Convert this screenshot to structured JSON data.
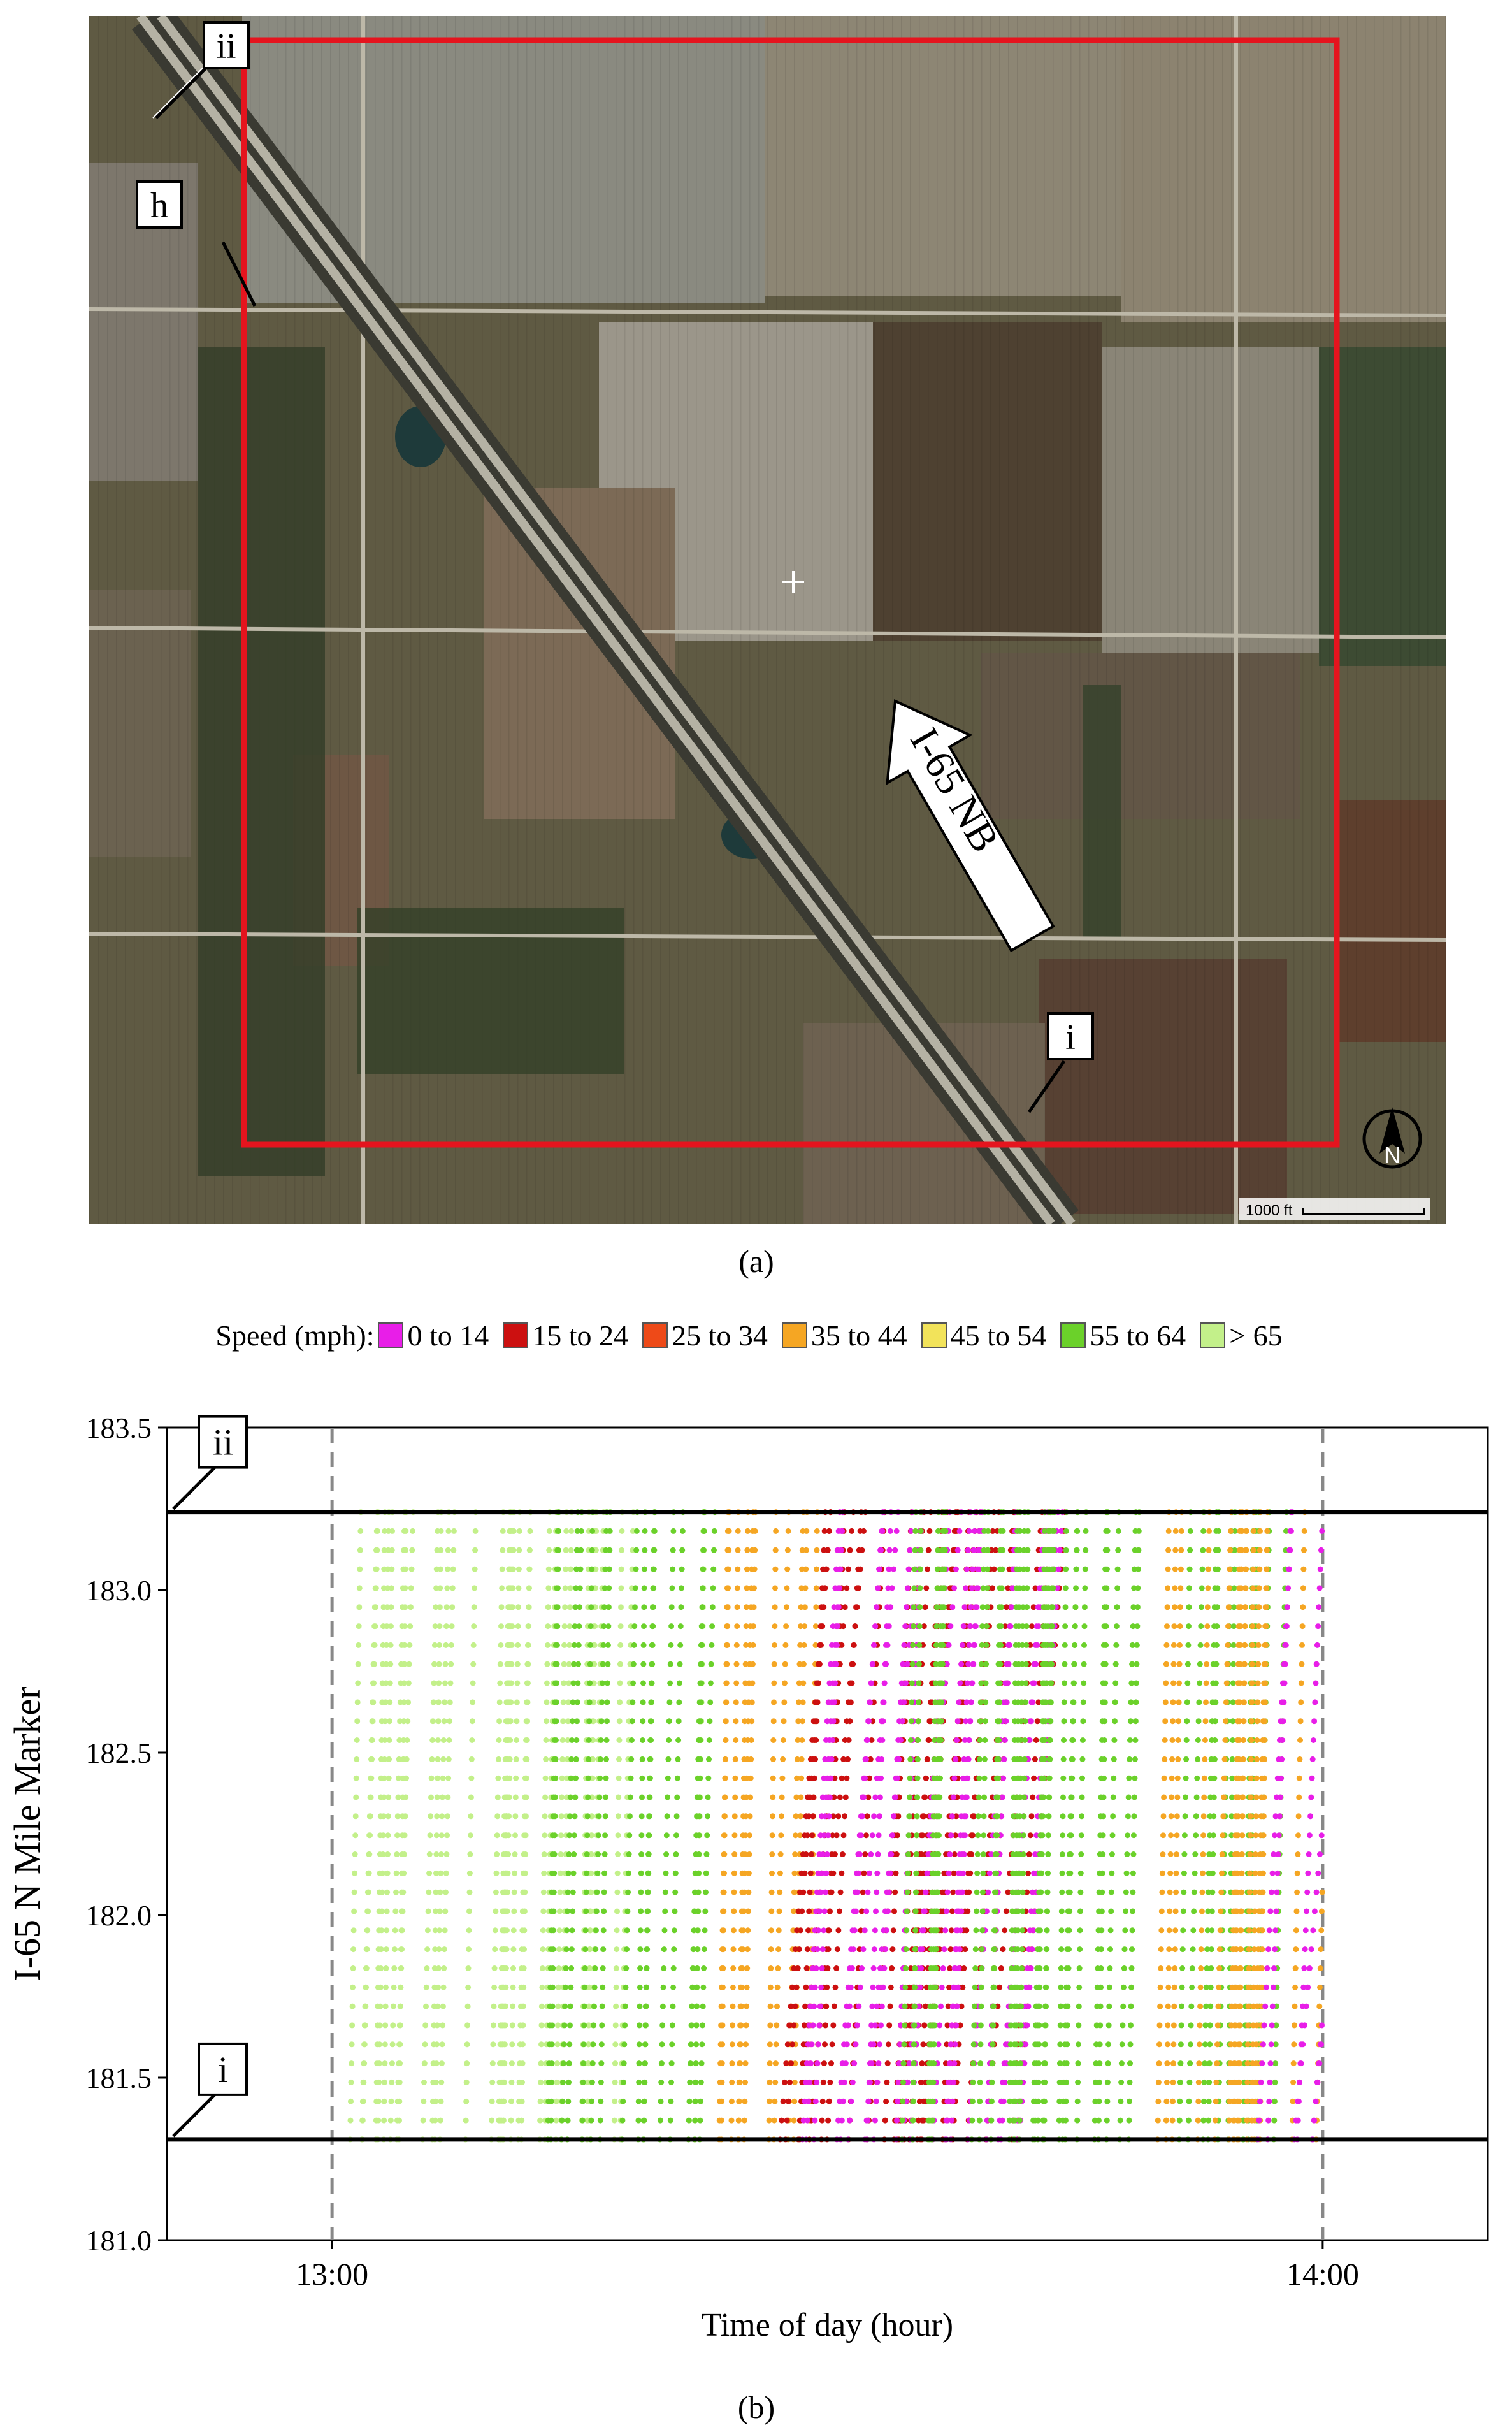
{
  "panel_a": {
    "caption": "(a)",
    "road_label": "I-65 NB",
    "markers": {
      "ii": "ii",
      "h": "h",
      "i": "i"
    },
    "scale_label": "1000 ft",
    "north_label": "N"
  },
  "legend": {
    "title": "Speed (mph):",
    "items": [
      {
        "label": "0 to 14",
        "color": "#e81ee8"
      },
      {
        "label": "15 to 24",
        "color": "#cc1010"
      },
      {
        "label": "25 to 34",
        "color": "#ee4a18"
      },
      {
        "label": "35 to 44",
        "color": "#f5a623"
      },
      {
        "label": "45 to 54",
        "color": "#f2e35a"
      },
      {
        "label": "55 to 64",
        "color": "#6bd12a"
      },
      {
        "label": "> 65",
        "color": "#c3f08a"
      }
    ]
  },
  "panel_b": {
    "caption": "(b)",
    "marker_ii": "ii",
    "marker_i": "i"
  },
  "chart_data": {
    "type": "scatter",
    "xlabel": "Time of day (hour)",
    "ylabel": "I-65 N Mile Marker",
    "x_ticks": [
      "13:00",
      "14:00"
    ],
    "y_ticks": [
      "181.0",
      "181.5",
      "182.0",
      "182.5",
      "183.0",
      "183.5"
    ],
    "xlim": [
      "12:50",
      "14:10"
    ],
    "ylim": [
      181.0,
      183.5
    ],
    "reference_lines": [
      {
        "label": "ii",
        "mile_marker": 183.24
      },
      {
        "label": "i",
        "mile_marker": 181.31
      }
    ],
    "vertical_reference_lines": [
      "13:00",
      "14:00"
    ],
    "grid": false,
    "legend_position": "top",
    "trajectory_groups": [
      {
        "time_range": [
          "13:00",
          "13:23"
        ],
        "speed_class": "> 65",
        "description_color": "#c3f08a"
      },
      {
        "time_range": [
          "13:13",
          "13:23"
        ],
        "speed_class": "55 to 64",
        "description_color": "#6bd12a"
      },
      {
        "time_range": [
          "13:23",
          "13:30"
        ],
        "speed_class": "35 to 44",
        "description_color": "#f5a623"
      },
      {
        "time_range": [
          "13:27",
          "13:43"
        ],
        "speed_class": "15 to 24",
        "description_color": "#cc1010"
      },
      {
        "time_range": [
          "13:28",
          "13:42"
        ],
        "speed_class": "0 to 14",
        "description_color": "#e81ee8"
      },
      {
        "time_range": [
          "13:33",
          "13:58"
        ],
        "speed_class": "55 to 64",
        "description_color": "#6bd12a"
      },
      {
        "time_range": [
          "13:50",
          "14:00"
        ],
        "speed_class": "35 to 44",
        "description_color": "#f5a623"
      },
      {
        "time_range": [
          "13:56",
          "14:00"
        ],
        "speed_class": "0 to 14",
        "description_color": "#e81ee8"
      }
    ]
  }
}
